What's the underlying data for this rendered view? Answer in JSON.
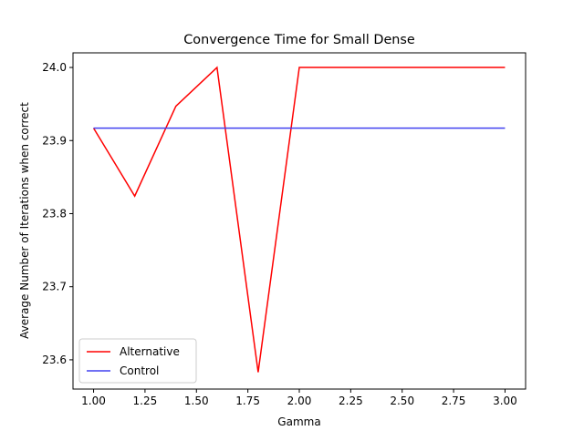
{
  "chart_data": {
    "type": "line",
    "title": "Convergence Time for Small Dense",
    "xlabel": "Gamma",
    "ylabel": "Average Number of Iterations when correct",
    "xlim": [
      0.9,
      3.1
    ],
    "ylim": [
      23.56,
      24.02
    ],
    "x_ticks": [
      1.0,
      1.25,
      1.5,
      1.75,
      2.0,
      2.25,
      2.5,
      2.75,
      3.0
    ],
    "x_tick_labels": [
      "1.00",
      "1.25",
      "1.50",
      "1.75",
      "2.00",
      "2.25",
      "2.50",
      "2.75",
      "3.00"
    ],
    "y_ticks": [
      23.6,
      23.7,
      23.8,
      23.9,
      24.0
    ],
    "y_tick_labels": [
      "23.6",
      "23.7",
      "23.8",
      "23.9",
      "24.0"
    ],
    "grid": false,
    "legend_position": "lower-left",
    "series": [
      {
        "name": "Alternative",
        "color": "#ff0000",
        "x": [
          1.0,
          1.2,
          1.4,
          1.6,
          1.8,
          2.0,
          2.2,
          2.4,
          2.6,
          2.8,
          3.0
        ],
        "y": [
          23.917,
          23.824,
          23.947,
          24.0,
          23.583,
          24.0,
          24.0,
          24.0,
          24.0,
          24.0,
          24.0
        ]
      },
      {
        "name": "Control",
        "color": "#4040f0",
        "x": [
          1.0,
          3.0
        ],
        "y": [
          23.917,
          23.917
        ]
      }
    ]
  }
}
